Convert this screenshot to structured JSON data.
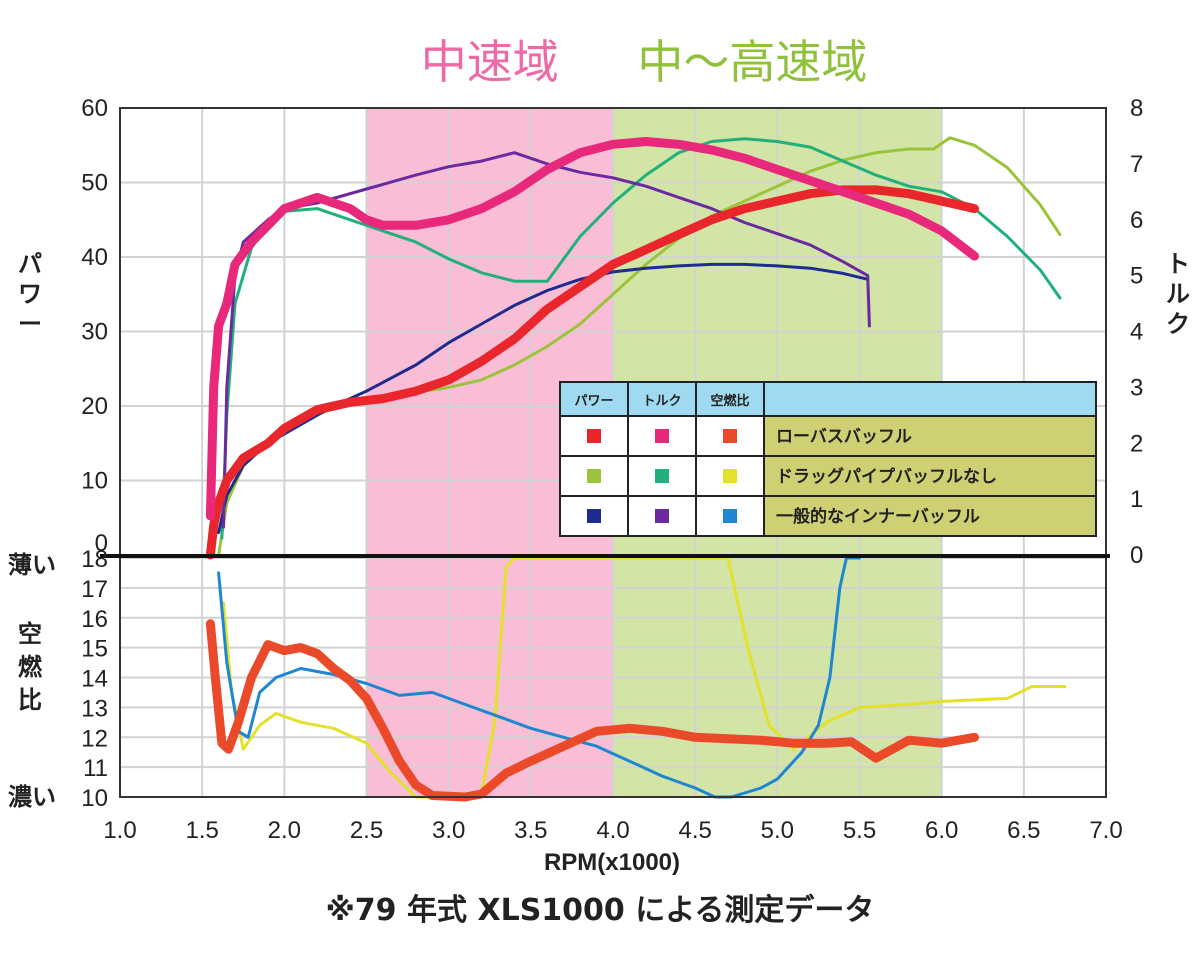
{
  "chart_data": {
    "type": "line",
    "bands": [
      {
        "label": "中速域",
        "from": 2.5,
        "to": 4.0,
        "color": "#f9bdd6",
        "label_color": "#ee6aa7"
      },
      {
        "label": "中～高速域",
        "from": 4.0,
        "to": 6.0,
        "color": "#d2e4a6",
        "label_color": "#8fc13a"
      }
    ],
    "x_axis": {
      "label": "RPM(x1000)",
      "range": [
        1.0,
        7.0
      ],
      "ticks": [
        "1.0",
        "1.5",
        "2.0",
        "2.5",
        "3.0",
        "3.5",
        "4.0",
        "4.5",
        "5.0",
        "5.5",
        "6.0",
        "6.5",
        "7.0"
      ]
    },
    "top_panel": {
      "left_axis": {
        "label": "パワー",
        "range": [
          0,
          60
        ],
        "ticks": [
          "0",
          "10",
          "20",
          "30",
          "40",
          "50",
          "60"
        ]
      },
      "right_axis": {
        "label": "トルク",
        "range": [
          0,
          8
        ],
        "ticks": [
          "0",
          "1",
          "2",
          "3",
          "4",
          "5",
          "6",
          "7",
          "8"
        ]
      }
    },
    "bottom_panel": {
      "axis": {
        "label": "空燃比",
        "range": [
          10,
          18
        ],
        "ticks": [
          "10",
          "11",
          "12",
          "13",
          "14",
          "15",
          "16",
          "17",
          "18"
        ],
        "top_note": "薄い",
        "bottom_note": "濃い"
      }
    },
    "legend": {
      "headers": [
        "パワー",
        "トルク",
        "空燃比"
      ],
      "rows": [
        {
          "name": "ローバスバッフル",
          "colors": [
            "#e8262c",
            "#e8287b",
            "#ea4a2a"
          ]
        },
        {
          "name": "ドラッグパイプバッフルなし",
          "colors": [
            "#9cc43a",
            "#22b07a",
            "#e3e22a"
          ]
        },
        {
          "name": "一般的なインナーバッフル",
          "colors": [
            "#1e2c8f",
            "#6b2aa0",
            "#1f86d0"
          ]
        }
      ]
    },
    "series": [
      {
        "name": "ローバスバッフル",
        "metric": "パワー",
        "axis": "power",
        "color": "#e8262c",
        "width": 9,
        "points": [
          [
            1.55,
            0
          ],
          [
            1.57,
            4
          ],
          [
            1.6,
            7
          ],
          [
            1.65,
            10
          ],
          [
            1.75,
            13
          ],
          [
            1.9,
            15
          ],
          [
            2.0,
            17
          ],
          [
            2.2,
            19.5
          ],
          [
            2.4,
            20.5
          ],
          [
            2.6,
            21
          ],
          [
            2.8,
            22
          ],
          [
            3.0,
            23.5
          ],
          [
            3.2,
            26
          ],
          [
            3.4,
            29
          ],
          [
            3.6,
            33
          ],
          [
            3.8,
            36
          ],
          [
            4.0,
            39
          ],
          [
            4.2,
            41
          ],
          [
            4.4,
            43
          ],
          [
            4.6,
            45
          ],
          [
            4.8,
            46.5
          ],
          [
            5.0,
            47.5
          ],
          [
            5.2,
            48.5
          ],
          [
            5.4,
            49
          ],
          [
            5.6,
            49
          ],
          [
            5.8,
            48.5
          ],
          [
            6.0,
            47.5
          ],
          [
            6.2,
            46.5
          ]
        ]
      },
      {
        "name": "ローバスバッフル",
        "metric": "トルク",
        "axis": "torque",
        "color": "#e8287b",
        "width": 9,
        "points": [
          [
            1.55,
            0.7
          ],
          [
            1.57,
            3.0
          ],
          [
            1.6,
            4.1
          ],
          [
            1.65,
            4.5
          ],
          [
            1.7,
            5.2
          ],
          [
            1.8,
            5.6
          ],
          [
            1.9,
            5.9
          ],
          [
            2.0,
            6.2
          ],
          [
            2.1,
            6.3
          ],
          [
            2.2,
            6.4
          ],
          [
            2.3,
            6.3
          ],
          [
            2.4,
            6.2
          ],
          [
            2.5,
            6.0
          ],
          [
            2.6,
            5.9
          ],
          [
            2.8,
            5.9
          ],
          [
            3.0,
            6.0
          ],
          [
            3.2,
            6.2
          ],
          [
            3.4,
            6.5
          ],
          [
            3.6,
            6.9
          ],
          [
            3.8,
            7.2
          ],
          [
            4.0,
            7.35
          ],
          [
            4.2,
            7.4
          ],
          [
            4.4,
            7.35
          ],
          [
            4.6,
            7.25
          ],
          [
            4.8,
            7.1
          ],
          [
            5.0,
            6.9
          ],
          [
            5.2,
            6.7
          ],
          [
            5.4,
            6.5
          ],
          [
            5.6,
            6.3
          ],
          [
            5.8,
            6.1
          ],
          [
            6.0,
            5.8
          ],
          [
            6.2,
            5.35
          ]
        ]
      },
      {
        "name": "ドラッグパイプバッフルなし",
        "metric": "パワー",
        "axis": "power",
        "color": "#9cc43a",
        "width": 3,
        "points": [
          [
            1.6,
            0
          ],
          [
            1.65,
            7
          ],
          [
            1.75,
            12
          ],
          [
            1.9,
            15
          ],
          [
            2.1,
            18
          ],
          [
            2.4,
            20.5
          ],
          [
            2.7,
            21.5
          ],
          [
            3.0,
            22.5
          ],
          [
            3.2,
            23.5
          ],
          [
            3.4,
            25.5
          ],
          [
            3.6,
            28
          ],
          [
            3.8,
            31
          ],
          [
            4.0,
            35
          ],
          [
            4.2,
            39
          ],
          [
            4.4,
            42.5
          ],
          [
            4.6,
            45.5
          ],
          [
            4.8,
            47.5
          ],
          [
            5.0,
            49.5
          ],
          [
            5.2,
            51.5
          ],
          [
            5.4,
            53
          ],
          [
            5.6,
            54
          ],
          [
            5.8,
            54.5
          ],
          [
            5.95,
            54.5
          ],
          [
            6.05,
            56
          ],
          [
            6.2,
            55
          ],
          [
            6.4,
            52
          ],
          [
            6.6,
            47
          ],
          [
            6.72,
            43
          ]
        ]
      },
      {
        "name": "ドラッグパイプバッフルなし",
        "metric": "トルク",
        "axis": "torque",
        "color": "#22b07a",
        "width": 3,
        "points": [
          [
            1.62,
            0.3
          ],
          [
            1.65,
            2.5
          ],
          [
            1.7,
            4.5
          ],
          [
            1.8,
            5.5
          ],
          [
            1.9,
            5.9
          ],
          [
            2.0,
            6.15
          ],
          [
            2.2,
            6.2
          ],
          [
            2.4,
            6.0
          ],
          [
            2.6,
            5.8
          ],
          [
            2.8,
            5.6
          ],
          [
            3.0,
            5.3
          ],
          [
            3.2,
            5.05
          ],
          [
            3.4,
            4.9
          ],
          [
            3.6,
            4.9
          ],
          [
            3.8,
            5.7
          ],
          [
            4.0,
            6.3
          ],
          [
            4.2,
            6.8
          ],
          [
            4.4,
            7.2
          ],
          [
            4.6,
            7.4
          ],
          [
            4.8,
            7.45
          ],
          [
            5.0,
            7.4
          ],
          [
            5.2,
            7.3
          ],
          [
            5.4,
            7.05
          ],
          [
            5.6,
            6.8
          ],
          [
            5.8,
            6.6
          ],
          [
            6.0,
            6.5
          ],
          [
            6.2,
            6.2
          ],
          [
            6.4,
            5.7
          ],
          [
            6.6,
            5.1
          ],
          [
            6.72,
            4.6
          ]
        ]
      },
      {
        "name": "一般的なインナーバッフル",
        "metric": "パワー",
        "axis": "power",
        "color": "#1e2c8f",
        "width": 3,
        "points": [
          [
            1.6,
            3
          ],
          [
            1.65,
            8
          ],
          [
            1.75,
            12
          ],
          [
            1.9,
            15
          ],
          [
            2.1,
            17.5
          ],
          [
            2.3,
            20
          ],
          [
            2.5,
            22
          ],
          [
            2.8,
            25.5
          ],
          [
            3.0,
            28.5
          ],
          [
            3.2,
            31
          ],
          [
            3.4,
            33.5
          ],
          [
            3.6,
            35.5
          ],
          [
            3.8,
            37
          ],
          [
            4.0,
            38
          ],
          [
            4.2,
            38.5
          ],
          [
            4.4,
            38.8
          ],
          [
            4.6,
            39
          ],
          [
            4.8,
            39
          ],
          [
            5.0,
            38.8
          ],
          [
            5.2,
            38.5
          ],
          [
            5.4,
            37.8
          ],
          [
            5.55,
            37
          ]
        ]
      },
      {
        "name": "一般的なインナーバッフル",
        "metric": "トルク",
        "axis": "torque",
        "color": "#6b2aa0",
        "width": 3,
        "points": [
          [
            1.63,
            0.5
          ],
          [
            1.65,
            3.0
          ],
          [
            1.7,
            5.0
          ],
          [
            1.75,
            5.6
          ],
          [
            1.9,
            6.0
          ],
          [
            2.0,
            6.2
          ],
          [
            2.2,
            6.3
          ],
          [
            2.5,
            6.55
          ],
          [
            2.8,
            6.8
          ],
          [
            3.0,
            6.95
          ],
          [
            3.2,
            7.05
          ],
          [
            3.4,
            7.2
          ],
          [
            3.6,
            7.0
          ],
          [
            3.8,
            6.85
          ],
          [
            4.0,
            6.75
          ],
          [
            4.2,
            6.6
          ],
          [
            4.4,
            6.4
          ],
          [
            4.6,
            6.2
          ],
          [
            4.8,
            5.95
          ],
          [
            5.0,
            5.75
          ],
          [
            5.2,
            5.55
          ],
          [
            5.4,
            5.25
          ],
          [
            5.55,
            5.0
          ],
          [
            5.56,
            4.1
          ]
        ]
      },
      {
        "name": "ローバスバッフル",
        "metric": "空燃比",
        "axis": "afr",
        "color": "#ea4a2a",
        "width": 9,
        "points": [
          [
            1.55,
            15.8
          ],
          [
            1.58,
            14.0
          ],
          [
            1.62,
            11.8
          ],
          [
            1.66,
            11.6
          ],
          [
            1.72,
            12.5
          ],
          [
            1.8,
            14.0
          ],
          [
            1.9,
            15.1
          ],
          [
            2.0,
            14.9
          ],
          [
            2.1,
            15.0
          ],
          [
            2.2,
            14.8
          ],
          [
            2.3,
            14.3
          ],
          [
            2.4,
            13.9
          ],
          [
            2.5,
            13.3
          ],
          [
            2.6,
            12.3
          ],
          [
            2.7,
            11.2
          ],
          [
            2.8,
            10.4
          ],
          [
            2.9,
            10.05
          ],
          [
            3.1,
            10.0
          ],
          [
            3.2,
            10.1
          ],
          [
            3.35,
            10.8
          ],
          [
            3.5,
            11.2
          ],
          [
            3.7,
            11.7
          ],
          [
            3.9,
            12.2
          ],
          [
            4.1,
            12.3
          ],
          [
            4.3,
            12.2
          ],
          [
            4.5,
            12.0
          ],
          [
            4.7,
            11.95
          ],
          [
            4.9,
            11.9
          ],
          [
            5.1,
            11.8
          ],
          [
            5.3,
            11.8
          ],
          [
            5.45,
            11.85
          ],
          [
            5.6,
            11.3
          ],
          [
            5.7,
            11.6
          ],
          [
            5.8,
            11.9
          ],
          [
            6.0,
            11.8
          ],
          [
            6.2,
            12.0
          ]
        ]
      },
      {
        "name": "ドラッグパイプバッフルなし",
        "metric": "空燃比",
        "axis": "afr",
        "color": "#e3e22a",
        "width": 3,
        "points": [
          [
            1.63,
            16.5
          ],
          [
            1.68,
            13.5
          ],
          [
            1.75,
            11.6
          ],
          [
            1.85,
            12.4
          ],
          [
            1.95,
            12.8
          ],
          [
            2.1,
            12.5
          ],
          [
            2.3,
            12.3
          ],
          [
            2.5,
            11.8
          ],
          [
            2.65,
            10.8
          ],
          [
            2.8,
            10.0
          ],
          [
            3.0,
            10.0
          ],
          [
            3.2,
            10.1
          ],
          [
            3.28,
            12.5
          ],
          [
            3.35,
            17.7
          ],
          [
            3.4,
            18.0
          ],
          [
            4.7,
            18.0
          ],
          [
            4.82,
            15.0
          ],
          [
            4.95,
            12.4
          ],
          [
            5.1,
            11.6
          ],
          [
            5.3,
            12.5
          ],
          [
            5.5,
            13.0
          ],
          [
            5.8,
            13.1
          ],
          [
            6.0,
            13.2
          ],
          [
            6.4,
            13.3
          ],
          [
            6.55,
            13.7
          ],
          [
            6.75,
            13.7
          ]
        ]
      },
      {
        "name": "一般的なインナーバッフル",
        "metric": "空燃比",
        "axis": "afr",
        "color": "#1f86d0",
        "width": 3,
        "points": [
          [
            1.6,
            17.5
          ],
          [
            1.65,
            14.5
          ],
          [
            1.72,
            12.2
          ],
          [
            1.78,
            12.0
          ],
          [
            1.85,
            13.5
          ],
          [
            1.95,
            14.0
          ],
          [
            2.1,
            14.3
          ],
          [
            2.3,
            14.1
          ],
          [
            2.5,
            13.8
          ],
          [
            2.7,
            13.4
          ],
          [
            2.9,
            13.5
          ],
          [
            3.1,
            13.1
          ],
          [
            3.3,
            12.7
          ],
          [
            3.5,
            12.3
          ],
          [
            3.7,
            12.0
          ],
          [
            3.9,
            11.7
          ],
          [
            4.1,
            11.2
          ],
          [
            4.3,
            10.7
          ],
          [
            4.5,
            10.3
          ],
          [
            4.62,
            10.0
          ],
          [
            4.72,
            10.0
          ],
          [
            4.9,
            10.3
          ],
          [
            5.0,
            10.6
          ],
          [
            5.15,
            11.5
          ],
          [
            5.25,
            12.4
          ],
          [
            5.32,
            14.0
          ],
          [
            5.38,
            17.0
          ],
          [
            5.42,
            18.0
          ],
          [
            5.5,
            18.0
          ]
        ]
      }
    ],
    "footnote": "※79 年式 XLS1000 による測定データ"
  }
}
